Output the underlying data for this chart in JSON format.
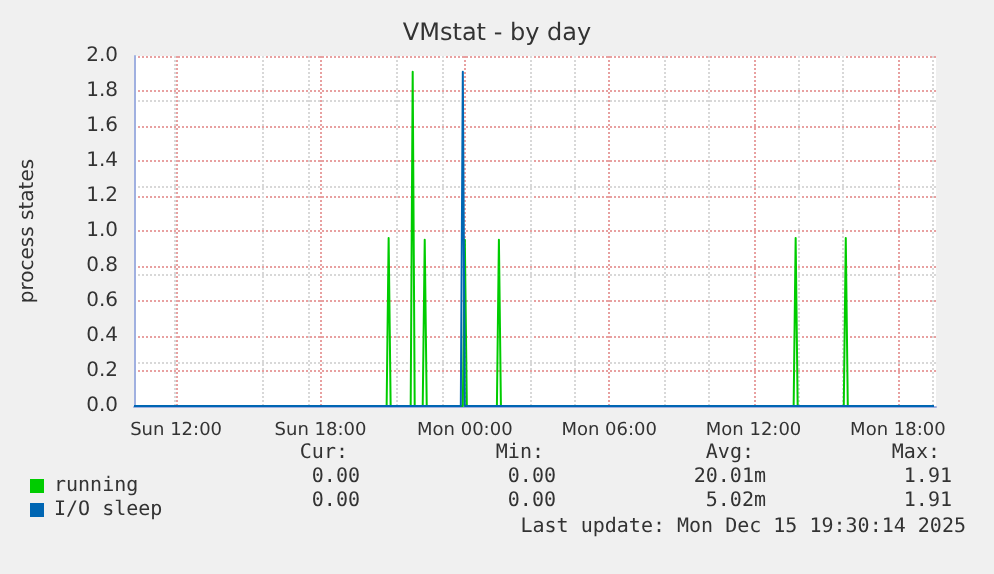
{
  "chart_data": {
    "type": "line",
    "title": "VMstat - by day",
    "ylabel": "process states",
    "xlim": [
      "2025-12-14T10:15",
      "2025-12-15T19:35"
    ],
    "xticks": [
      {
        "value": "2025-12-14T12:00",
        "label": "Sun 12:00"
      },
      {
        "value": "2025-12-14T18:00",
        "label": "Sun 18:00"
      },
      {
        "value": "2025-12-15T00:00",
        "label": "Mon 00:00"
      },
      {
        "value": "2025-12-15T06:00",
        "label": "Mon 06:00"
      },
      {
        "value": "2025-12-15T12:00",
        "label": "Mon 12:00"
      },
      {
        "value": "2025-12-15T18:00",
        "label": "Mon 18:00"
      }
    ],
    "ylim": [
      0,
      2
    ],
    "yticks": [
      {
        "value": 0,
        "label": "0.0"
      },
      0.2,
      0.4,
      0.6,
      0.8,
      {
        "value": 1,
        "label": "1.0"
      },
      1.2,
      1.4,
      1.6,
      1.8,
      {
        "value": 2,
        "label": "2.0"
      }
    ],
    "grid": true,
    "legend": "bottom left",
    "marker": "none",
    "line_style": "solid",
    "series": [
      {
        "name": "running",
        "color": "#00cc00",
        "x": [
          "2025-12-14T10:15",
          "2025-12-14T20:45",
          "2025-12-14T20:50",
          "2025-12-14T20:55",
          "2025-12-14T21:45",
          "2025-12-14T21:50",
          "2025-12-14T21:55",
          "2025-12-14T22:15",
          "2025-12-14T22:20",
          "2025-12-14T22:25",
          "2025-12-14T23:55",
          "2025-12-15T00:00",
          "2025-12-15T00:05",
          "2025-12-15T01:20",
          "2025-12-15T01:25",
          "2025-12-15T01:30",
          "2025-12-15T13:40",
          "2025-12-15T13:45",
          "2025-12-15T13:50",
          "2025-12-15T15:45",
          "2025-12-15T15:50",
          "2025-12-15T15:55",
          "2025-12-15T19:30"
        ],
        "values": [
          0,
          0,
          0.96,
          0,
          0,
          1.91,
          0,
          0,
          0.95,
          0,
          0,
          0.95,
          0,
          0,
          0.95,
          0,
          0,
          0.96,
          0,
          0,
          0.96,
          0,
          0
        ]
      },
      {
        "name": "I/O sleep",
        "color": "#0066b3",
        "x": [
          "2025-12-14T10:15",
          "2025-12-14T23:50",
          "2025-12-14T23:55",
          "2025-12-15T00:00",
          "2025-12-15T19:30"
        ],
        "values": [
          0,
          0,
          1.91,
          0,
          0
        ]
      }
    ],
    "annotations": [
      "Cur:",
      "Min:",
      "Avg:",
      "Max:",
      "0.00",
      "0.00",
      "20.01m",
      "1.91",
      "0.00",
      "0.00",
      "5.02m",
      "1.91",
      "Last update: Mon Dec 15 19:30:14 2025"
    ]
  }
}
